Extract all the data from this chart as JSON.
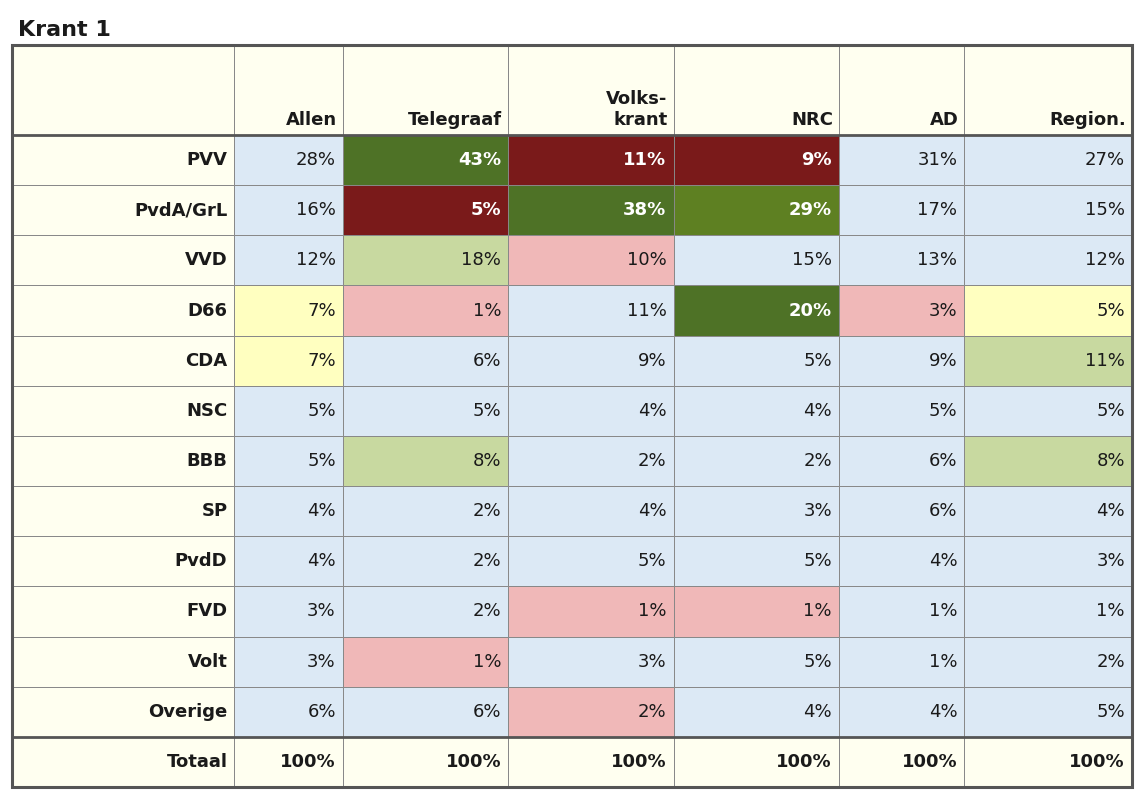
{
  "title": "Krant 1",
  "col_headers": [
    "",
    "Allen",
    "Telegraaf",
    "Volks-\nkrant",
    "NRC",
    "AD",
    "Region."
  ],
  "row_headers": [
    "PVV",
    "PvdA/GrL",
    "VVD",
    "D66",
    "CDA",
    "NSC",
    "BBB",
    "SP",
    "PvdD",
    "FVD",
    "Volt",
    "Overige",
    "Totaal"
  ],
  "data": [
    [
      "28%",
      "43%",
      "11%",
      "9%",
      "31%",
      "27%"
    ],
    [
      "16%",
      "5%",
      "38%",
      "29%",
      "17%",
      "15%"
    ],
    [
      "12%",
      "18%",
      "10%",
      "15%",
      "13%",
      "12%"
    ],
    [
      "7%",
      "1%",
      "11%",
      "20%",
      "3%",
      "5%"
    ],
    [
      "7%",
      "6%",
      "9%",
      "5%",
      "9%",
      "11%"
    ],
    [
      "5%",
      "5%",
      "4%",
      "4%",
      "5%",
      "5%"
    ],
    [
      "5%",
      "8%",
      "2%",
      "2%",
      "6%",
      "8%"
    ],
    [
      "4%",
      "2%",
      "4%",
      "3%",
      "6%",
      "4%"
    ],
    [
      "4%",
      "2%",
      "5%",
      "5%",
      "4%",
      "3%"
    ],
    [
      "3%",
      "2%",
      "1%",
      "1%",
      "1%",
      "1%"
    ],
    [
      "3%",
      "1%",
      "3%",
      "5%",
      "1%",
      "2%"
    ],
    [
      "6%",
      "6%",
      "2%",
      "4%",
      "4%",
      "5%"
    ],
    [
      "100%",
      "100%",
      "100%",
      "100%",
      "100%",
      "100%"
    ]
  ],
  "cell_colors": [
    [
      "#dce9f5",
      "#4e7226",
      "#7a1a1a",
      "#7a1a1a",
      "#dce9f5",
      "#dce9f5"
    ],
    [
      "#dce9f5",
      "#7a1a1a",
      "#4e7226",
      "#5e8022",
      "#dce9f5",
      "#dce9f5"
    ],
    [
      "#dce9f5",
      "#c8d9a0",
      "#f0b8b8",
      "#dce9f5",
      "#dce9f5",
      "#dce9f5"
    ],
    [
      "#ffffc0",
      "#f0b8b8",
      "#dce9f5",
      "#4e7226",
      "#f0b8b8",
      "#ffffc0"
    ],
    [
      "#ffffc0",
      "#dce9f5",
      "#dce9f5",
      "#dce9f5",
      "#dce9f5",
      "#c8d9a0"
    ],
    [
      "#dce9f5",
      "#dce9f5",
      "#dce9f5",
      "#dce9f5",
      "#dce9f5",
      "#dce9f5"
    ],
    [
      "#dce9f5",
      "#c8d9a0",
      "#dce9f5",
      "#dce9f5",
      "#dce9f5",
      "#c8d9a0"
    ],
    [
      "#dce9f5",
      "#dce9f5",
      "#dce9f5",
      "#dce9f5",
      "#dce9f5",
      "#dce9f5"
    ],
    [
      "#dce9f5",
      "#dce9f5",
      "#dce9f5",
      "#dce9f5",
      "#dce9f5",
      "#dce9f5"
    ],
    [
      "#dce9f5",
      "#dce9f5",
      "#f0b8b8",
      "#f0b8b8",
      "#dce9f5",
      "#dce9f5"
    ],
    [
      "#dce9f5",
      "#f0b8b8",
      "#dce9f5",
      "#dce9f5",
      "#dce9f5",
      "#dce9f5"
    ],
    [
      "#dce9f5",
      "#dce9f5",
      "#f0b8b8",
      "#dce9f5",
      "#dce9f5",
      "#dce9f5"
    ],
    [
      "#fffff0",
      "#fffff0",
      "#fffff0",
      "#fffff0",
      "#fffff0",
      "#fffff0"
    ]
  ],
  "text_colors": [
    [
      "#1a1a1a",
      "#ffffff",
      "#ffffff",
      "#ffffff",
      "#1a1a1a",
      "#1a1a1a"
    ],
    [
      "#1a1a1a",
      "#ffffff",
      "#ffffff",
      "#ffffff",
      "#1a1a1a",
      "#1a1a1a"
    ],
    [
      "#1a1a1a",
      "#1a1a1a",
      "#1a1a1a",
      "#1a1a1a",
      "#1a1a1a",
      "#1a1a1a"
    ],
    [
      "#1a1a1a",
      "#1a1a1a",
      "#1a1a1a",
      "#ffffff",
      "#1a1a1a",
      "#1a1a1a"
    ],
    [
      "#1a1a1a",
      "#1a1a1a",
      "#1a1a1a",
      "#1a1a1a",
      "#1a1a1a",
      "#1a1a1a"
    ],
    [
      "#1a1a1a",
      "#1a1a1a",
      "#1a1a1a",
      "#1a1a1a",
      "#1a1a1a",
      "#1a1a1a"
    ],
    [
      "#1a1a1a",
      "#1a1a1a",
      "#1a1a1a",
      "#1a1a1a",
      "#1a1a1a",
      "#1a1a1a"
    ],
    [
      "#1a1a1a",
      "#1a1a1a",
      "#1a1a1a",
      "#1a1a1a",
      "#1a1a1a",
      "#1a1a1a"
    ],
    [
      "#1a1a1a",
      "#1a1a1a",
      "#1a1a1a",
      "#1a1a1a",
      "#1a1a1a",
      "#1a1a1a"
    ],
    [
      "#1a1a1a",
      "#1a1a1a",
      "#1a1a1a",
      "#1a1a1a",
      "#1a1a1a",
      "#1a1a1a"
    ],
    [
      "#1a1a1a",
      "#1a1a1a",
      "#1a1a1a",
      "#1a1a1a",
      "#1a1a1a",
      "#1a1a1a"
    ],
    [
      "#1a1a1a",
      "#1a1a1a",
      "#1a1a1a",
      "#1a1a1a",
      "#1a1a1a",
      "#1a1a1a"
    ],
    [
      "#1a1a1a",
      "#1a1a1a",
      "#1a1a1a",
      "#1a1a1a",
      "#1a1a1a",
      "#1a1a1a"
    ]
  ],
  "strong_bg_colors": [
    "#4e7226",
    "#7a1a1a",
    "#5e8022"
  ],
  "header_bg": "#fffff0",
  "row_label_bg": "#fffff0",
  "allen_bg": "#dce9f5",
  "totaal_bg": "#fffff0",
  "outer_bg": "#ffffff",
  "border_color": "#555555",
  "thin_border_color": "#888888",
  "title_fontsize": 16,
  "cell_fontsize": 13,
  "header_fontsize": 13
}
